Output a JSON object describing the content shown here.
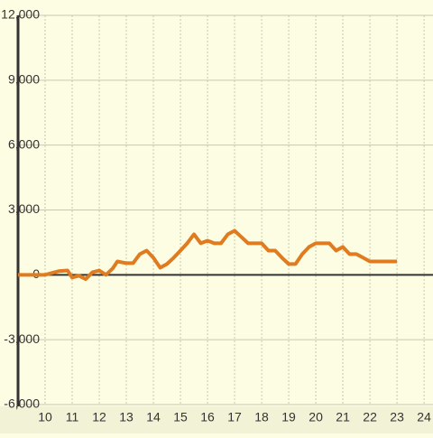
{
  "chart_data": {
    "type": "line",
    "x": [
      9,
      10,
      10.5,
      10.83,
      11,
      11.25,
      11.5,
      11.75,
      12,
      12.25,
      12.5,
      12.67,
      13,
      13.25,
      13.5,
      13.75,
      14,
      14.25,
      14.5,
      14.75,
      15,
      15.25,
      15.5,
      15.75,
      16,
      16.25,
      16.5,
      16.75,
      17,
      17.25,
      17.5,
      17.75,
      18,
      18.25,
      18.5,
      18.75,
      19,
      19.25,
      19.5,
      19.75,
      20,
      20.25,
      20.5,
      20.75,
      21,
      21.25,
      21.5,
      21.75,
      22,
      22.25,
      22.5,
      22.75,
      23
    ],
    "series": [
      {
        "color": "#e07b20",
        "values": [
          0,
          0,
          170,
          200,
          -125,
          -40,
          -200,
          120,
          200,
          0,
          300,
          620,
          540,
          540,
          960,
          1120,
          790,
          330,
          500,
          790,
          1120,
          1460,
          1875,
          1460,
          1580,
          1460,
          1460,
          1875,
          2040,
          1750,
          1460,
          1460,
          1460,
          1120,
          1120,
          790,
          500,
          500,
          960,
          1290,
          1460,
          1460,
          1460,
          1120,
          1290,
          960,
          960,
          790,
          620,
          620,
          620,
          620,
          620
        ]
      }
    ],
    "xlim": [
      9,
      24.33
    ],
    "xticks": [
      10,
      11,
      12,
      13,
      14,
      15,
      16,
      17,
      18,
      19,
      20,
      21,
      22,
      23,
      24
    ],
    "ylim": [
      -6000,
      12000
    ],
    "yticks": [
      {
        "value": -6000,
        "label": "-6,000"
      },
      {
        "value": -3000,
        "label": "-3,000"
      },
      0,
      {
        "value": 3000,
        "label": "3,000"
      },
      {
        "value": 6000,
        "label": "6,000"
      },
      {
        "value": 9000,
        "label": "9,000"
      },
      {
        "value": 12000,
        "label": "12,000"
      }
    ],
    "grid": true
  }
}
